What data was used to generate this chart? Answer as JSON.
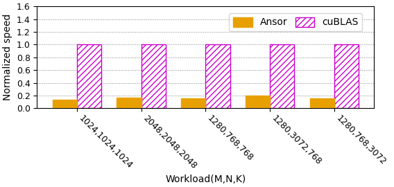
{
  "categories": [
    "1024,1024,1024",
    "2048,2048,2048",
    "1280,768,768",
    "1280,3072,768",
    "1280,768,3072"
  ],
  "ansor_values": [
    0.13,
    0.165,
    0.16,
    0.205,
    0.16
  ],
  "cublas_values": [
    1.0,
    1.0,
    1.0,
    1.0,
    1.0
  ],
  "ansor_color": "#E8A000",
  "cublas_color": "#CC00CC",
  "cublas_hatch": "////",
  "xlabel": "Workload(M,N,K)",
  "ylabel": "Normalized speed",
  "ylim": [
    0,
    1.6
  ],
  "yticks": [
    0,
    0.2,
    0.4,
    0.6,
    0.8,
    1.0,
    1.2,
    1.4,
    1.6
  ],
  "bar_width": 0.38,
  "legend_labels": [
    "Ansor",
    "cuBLAS"
  ],
  "axis_fontsize": 10,
  "tick_fontsize": 9,
  "legend_fontsize": 10
}
